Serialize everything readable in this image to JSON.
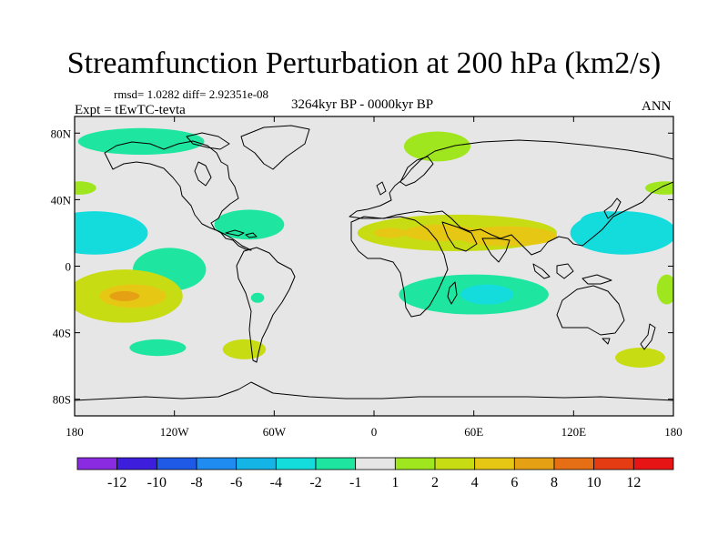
{
  "chart_data": {
    "type": "heatmap",
    "title": "Streamfunction Perturbation at 200 hPa (km2/s)",
    "stats_label": "rmsd= 1.0282 diff= 2.92351e-08",
    "experiment_label": "Expt = tEwTC-tevta",
    "period_label": "3264kyr BP - 0000kyr BP",
    "season_label": "ANN",
    "x_axis": {
      "range": [
        -180,
        180
      ],
      "ticks": [
        -180,
        -120,
        -60,
        0,
        60,
        120,
        180
      ],
      "tick_labels": [
        "180",
        "120W",
        "60W",
        "0",
        "60E",
        "120E",
        "180"
      ]
    },
    "y_axis": {
      "range": [
        -90,
        90
      ],
      "ticks": [
        80,
        40,
        0,
        -40,
        -80
      ],
      "tick_labels": [
        "80N",
        "40N",
        "0",
        "40S",
        "80S"
      ]
    },
    "colorbar": {
      "levels": [
        -12,
        -10,
        -8,
        -6,
        -4,
        -2,
        -1,
        1,
        2,
        4,
        6,
        8,
        10,
        12
      ],
      "level_labels": [
        "-12",
        "-10",
        "-8",
        "-6",
        "-4",
        "-2",
        "-1",
        "1",
        "2",
        "4",
        "6",
        "8",
        "10",
        "12"
      ],
      "colors": [
        "#8a2be2",
        "#3c1edc",
        "#1e5ae6",
        "#1e8cf0",
        "#14b4e6",
        "#14dcdc",
        "#1ee6a0",
        "#e6e6e6",
        "#a0e61e",
        "#c8dc14",
        "#e6c814",
        "#e6a014",
        "#e66e14",
        "#e63c14",
        "#e61414"
      ]
    },
    "anomaly_regions": [
      {
        "lon": 50,
        "lat": 20,
        "value": 2.5,
        "rlon": 60,
        "rlat": 11
      },
      {
        "lon": 40,
        "lat": 20,
        "value": 4,
        "rlon": 22,
        "rlat": 5
      },
      {
        "lon": 80,
        "lat": 18,
        "value": 4,
        "rlon": 30,
        "rlat": 6
      },
      {
        "lon": 10,
        "lat": 20,
        "value": 4,
        "rlon": 10,
        "rlat": 3
      },
      {
        "lon": 150,
        "lat": 20,
        "value": -2.5,
        "rlon": 32,
        "rlat": 13
      },
      {
        "lon": 140,
        "lat": 27,
        "value": -4,
        "rlon": 16,
        "rlat": 6
      },
      {
        "lon": -168,
        "lat": 20,
        "value": -2.5,
        "rlon": 32,
        "rlat": 13
      },
      {
        "lon": -170,
        "lat": 23,
        "value": -4,
        "rlon": 12,
        "rlat": 7
      },
      {
        "lon": -140,
        "lat": 75,
        "value": -1.5,
        "rlon": 38,
        "rlat": 8
      },
      {
        "lon": 38,
        "lat": 72,
        "value": 1.5,
        "rlon": 20,
        "rlat": 9
      },
      {
        "lon": -75,
        "lat": 25,
        "value": -1.5,
        "rlon": 21,
        "rlat": 9
      },
      {
        "lon": 175,
        "lat": 47,
        "value": 1.5,
        "rlon": 12,
        "rlat": 4
      },
      {
        "lon": -177,
        "lat": 47,
        "value": 1.5,
        "rlon": 10,
        "rlat": 4
      },
      {
        "lon": -123,
        "lat": -2,
        "value": -1.5,
        "rlon": 22,
        "rlat": 13
      },
      {
        "lon": -150,
        "lat": -18,
        "value": 2,
        "rlon": 35,
        "rlat": 16
      },
      {
        "lon": -145,
        "lat": -18,
        "value": 4,
        "rlon": 20,
        "rlat": 7
      },
      {
        "lon": -150,
        "lat": -18,
        "value": 6,
        "rlon": 9,
        "rlat": 3
      },
      {
        "lon": 60,
        "lat": -17,
        "value": -1.5,
        "rlon": 45,
        "rlat": 12
      },
      {
        "lon": 68,
        "lat": -17,
        "value": -3,
        "rlon": 16,
        "rlat": 6
      },
      {
        "lon": -130,
        "lat": -49,
        "value": -1.5,
        "rlon": 17,
        "rlat": 5
      },
      {
        "lon": -78,
        "lat": -50,
        "value": 2,
        "rlon": 13,
        "rlat": 6
      },
      {
        "lon": -70,
        "lat": -19,
        "value": -1.5,
        "rlon": 4,
        "rlat": 3
      },
      {
        "lon": 160,
        "lat": -55,
        "value": 2,
        "rlon": 15,
        "rlat": 6
      },
      {
        "lon": 176,
        "lat": -14,
        "value": 1.5,
        "rlon": 6,
        "rlat": 9
      }
    ]
  }
}
